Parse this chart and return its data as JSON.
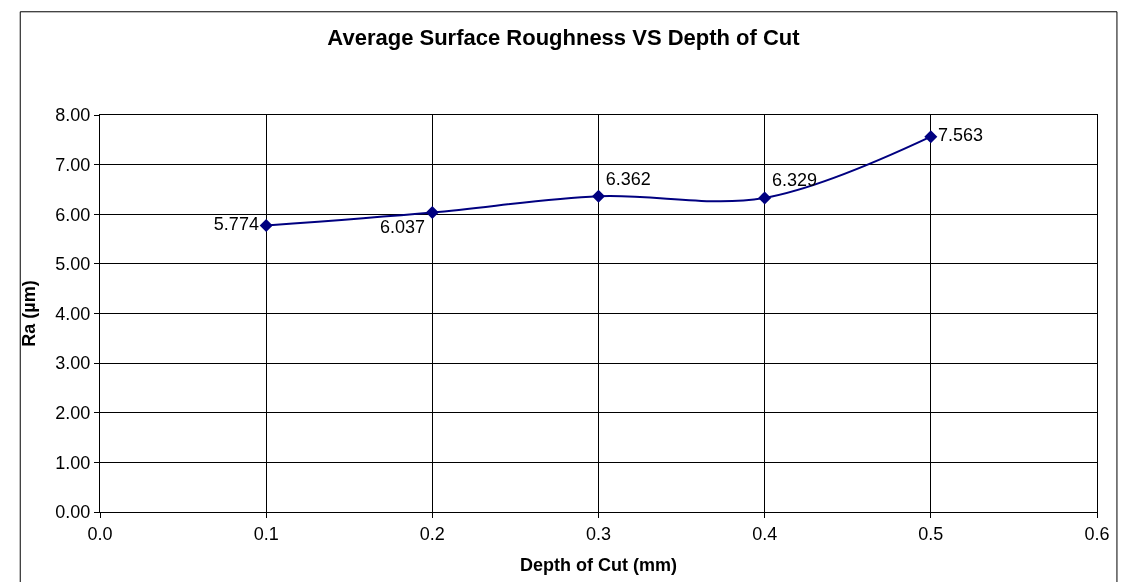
{
  "chart_data": {
    "type": "line",
    "title": "Average Surface Roughness VS Depth of Cut",
    "xlabel": "Depth of Cut (mm)",
    "ylabel": "Ra (µm)",
    "x": [
      0.1,
      0.2,
      0.3,
      0.4,
      0.5
    ],
    "series": [
      {
        "color": "#000080",
        "values": [
          5.774,
          6.037,
          6.362,
          6.329,
          7.563
        ]
      }
    ],
    "xlim": [
      0,
      0.6
    ],
    "xticks": [
      {
        "value": 0,
        "label": "0.0"
      },
      {
        "value": 0.1,
        "label": "0.1"
      },
      {
        "value": 0.2,
        "label": "0.2"
      },
      {
        "value": 0.3,
        "label": "0.3"
      },
      {
        "value": 0.4,
        "label": "0.4"
      },
      {
        "value": 0.5,
        "label": "0.5"
      },
      {
        "value": 0.6,
        "label": "0.6"
      }
    ],
    "ylim": [
      0,
      8
    ],
    "yticks": [
      {
        "value": 0,
        "label": "0.00"
      },
      {
        "value": 1,
        "label": "1.00"
      },
      {
        "value": 2,
        "label": "2.00"
      },
      {
        "value": 3,
        "label": "3.00"
      },
      {
        "value": 4,
        "label": "4.00"
      },
      {
        "value": 5,
        "label": "5.00"
      },
      {
        "value": 6,
        "label": "6.00"
      },
      {
        "value": 7,
        "label": "7.00"
      },
      {
        "value": 8,
        "label": "8.00"
      }
    ],
    "data_labels": true,
    "grid": true,
    "marker": "diamond",
    "line_style": "solid"
  }
}
